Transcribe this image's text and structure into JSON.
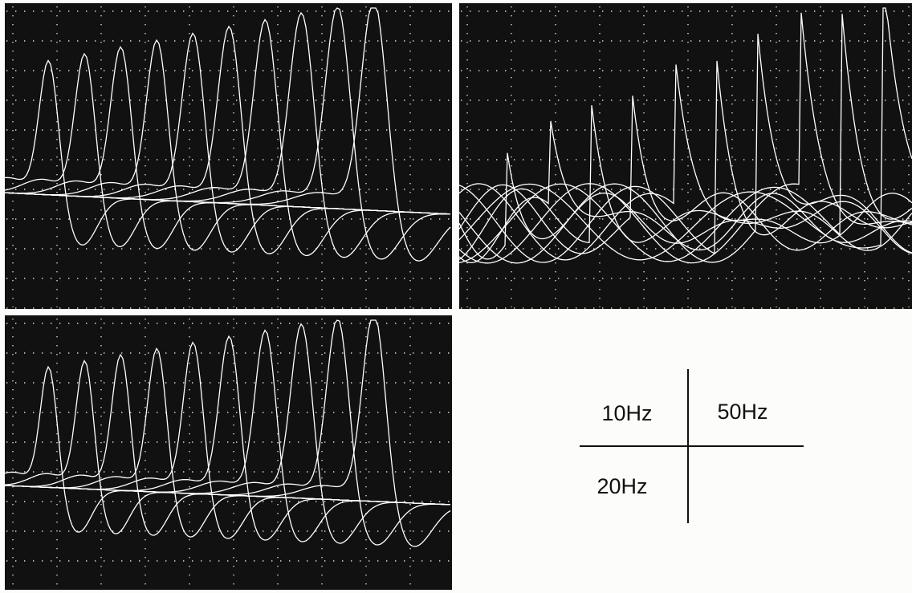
{
  "labels": {
    "top_left": "10Hz",
    "top_right": "50Hz",
    "bottom_left": "20Hz"
  }
}
